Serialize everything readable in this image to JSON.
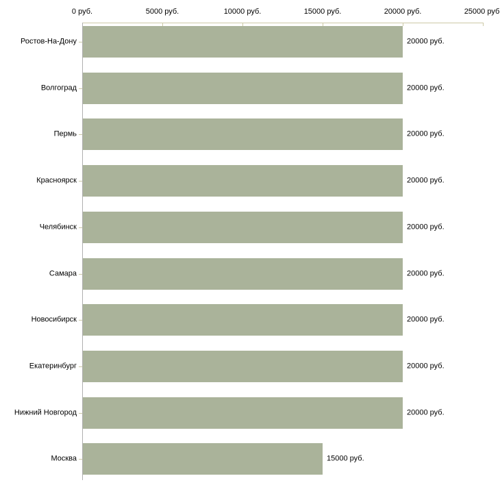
{
  "chart_data": {
    "type": "bar",
    "orientation": "horizontal",
    "title": "",
    "xlabel": "",
    "ylabel": "",
    "xlim": [
      0,
      25000
    ],
    "x_axis_position": "top",
    "grid": false,
    "legend": false,
    "categories": [
      "Ростов-На-Дону",
      "Волгоград",
      "Пермь",
      "Красноярск",
      "Челябинск",
      "Самара",
      "Новосибирск",
      "Екатеринбург",
      "Нижний Новгород",
      "Москва"
    ],
    "values": [
      20000,
      20000,
      20000,
      20000,
      20000,
      20000,
      20000,
      20000,
      20000,
      15000
    ],
    "value_labels": [
      "20000 руб.",
      "20000 руб.",
      "20000 руб.",
      "20000 руб.",
      "20000 руб.",
      "20000 руб.",
      "20000 руб.",
      "20000 руб.",
      "20000 руб.",
      "15000 руб."
    ],
    "x_ticks": [
      {
        "value": 0,
        "label": "0 руб."
      },
      {
        "value": 5000,
        "label": "5000 руб."
      },
      {
        "value": 10000,
        "label": "10000 руб."
      },
      {
        "value": 15000,
        "label": "15000 руб."
      },
      {
        "value": 20000,
        "label": "20000 руб."
      },
      {
        "value": 25000,
        "label": "25000 руб."
      }
    ],
    "colors": {
      "bar": "#aab39a",
      "axis_ticks": "#ccc9a6",
      "y_axis_line": "#b0b0b0",
      "text": "#000000",
      "background": "#ffffff"
    }
  }
}
